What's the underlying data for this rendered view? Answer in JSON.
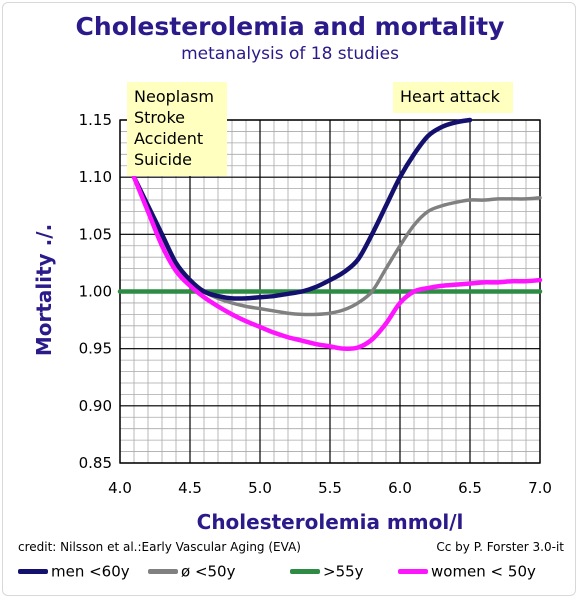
{
  "title": "Cholesterolemia and mortality",
  "subtitle": "metanalysis of 18 studies",
  "credit_left": "credit: Nilsson et al.:Early Vascular Aging (EVA)",
  "credit_right": "Cc by P. Forster 3.0-it",
  "colors": {
    "men_60": "#14116e",
    "age_50": "#808080",
    "age_55": "#2e8b44",
    "women_50": "#ff14ff",
    "note_bg": "#ffffc0",
    "axis_text": "#2a1a8a"
  },
  "chart_data": {
    "type": "line",
    "title": "Cholesterolemia and mortality",
    "subtitle": "metanalysis of 18 studies",
    "xlabel": "Cholesterolemia mmol/l",
    "ylabel": "Mortality ./.",
    "xlim": [
      4.0,
      7.0
    ],
    "ylim": [
      0.85,
      1.15
    ],
    "x_ticks": [
      "4.0",
      "4.5",
      "5.0",
      "5.5",
      "6.0",
      "6.5",
      "7.0"
    ],
    "y_ticks": [
      "0.85",
      "0.90",
      "0.95",
      "1.00",
      "1.05",
      "1.10",
      "1.15"
    ],
    "grid": true,
    "legend_position": "bottom",
    "annotations": [
      {
        "lines": [
          "Neoplasm",
          "Stroke",
          "Accident",
          "Suicide"
        ],
        "x": 4.05,
        "y": 1.15
      },
      {
        "lines": [
          "Heart attack"
        ],
        "x": 5.95,
        "y": 1.15
      }
    ],
    "series": [
      {
        "name": "men <60y",
        "color": "#14116e",
        "x": [
          4.1,
          4.2,
          4.3,
          4.4,
          4.5,
          4.6,
          4.7,
          4.8,
          4.9,
          5.0,
          5.1,
          5.2,
          5.3,
          5.4,
          5.5,
          5.6,
          5.7,
          5.8,
          5.9,
          6.0,
          6.1,
          6.2,
          6.3,
          6.4,
          6.5
        ],
        "y": [
          1.1,
          1.075,
          1.05,
          1.025,
          1.01,
          1.0,
          0.996,
          0.994,
          0.994,
          0.995,
          0.996,
          0.998,
          1.0,
          1.004,
          1.01,
          1.017,
          1.028,
          1.05,
          1.075,
          1.1,
          1.12,
          1.136,
          1.144,
          1.148,
          1.15
        ]
      },
      {
        "name": "ø <50y",
        "color": "#808080",
        "x": [
          4.1,
          4.2,
          4.3,
          4.4,
          4.5,
          4.6,
          4.7,
          4.8,
          4.9,
          5.0,
          5.1,
          5.2,
          5.3,
          5.4,
          5.5,
          5.6,
          5.7,
          5.8,
          5.9,
          6.0,
          6.1,
          6.2,
          6.3,
          6.4,
          6.5,
          6.6,
          6.7,
          6.8,
          6.9,
          7.0
        ],
        "y": [
          1.1,
          1.075,
          1.048,
          1.025,
          1.01,
          1.0,
          0.994,
          0.99,
          0.987,
          0.985,
          0.983,
          0.981,
          0.98,
          0.98,
          0.981,
          0.984,
          0.99,
          1.0,
          1.02,
          1.04,
          1.058,
          1.07,
          1.075,
          1.078,
          1.08,
          1.08,
          1.081,
          1.081,
          1.081,
          1.082
        ]
      },
      {
        "name": ">55y",
        "color": "#2e8b44",
        "x": [
          4.0,
          7.0
        ],
        "y": [
          1.0,
          1.0
        ]
      },
      {
        "name": "women < 50y",
        "color": "#ff14ff",
        "x": [
          4.1,
          4.2,
          4.3,
          4.4,
          4.5,
          4.6,
          4.7,
          4.8,
          4.9,
          5.0,
          5.1,
          5.2,
          5.3,
          5.4,
          5.5,
          5.6,
          5.7,
          5.8,
          5.9,
          6.0,
          6.1,
          6.2,
          6.3,
          6.4,
          6.5,
          6.6,
          6.7,
          6.8,
          6.9,
          7.0
        ],
        "y": [
          1.1,
          1.07,
          1.04,
          1.018,
          1.005,
          0.995,
          0.987,
          0.98,
          0.974,
          0.969,
          0.964,
          0.96,
          0.957,
          0.954,
          0.952,
          0.95,
          0.951,
          0.958,
          0.972,
          0.99,
          1.0,
          1.003,
          1.005,
          1.006,
          1.007,
          1.008,
          1.008,
          1.009,
          1.009,
          1.01
        ]
      }
    ]
  }
}
